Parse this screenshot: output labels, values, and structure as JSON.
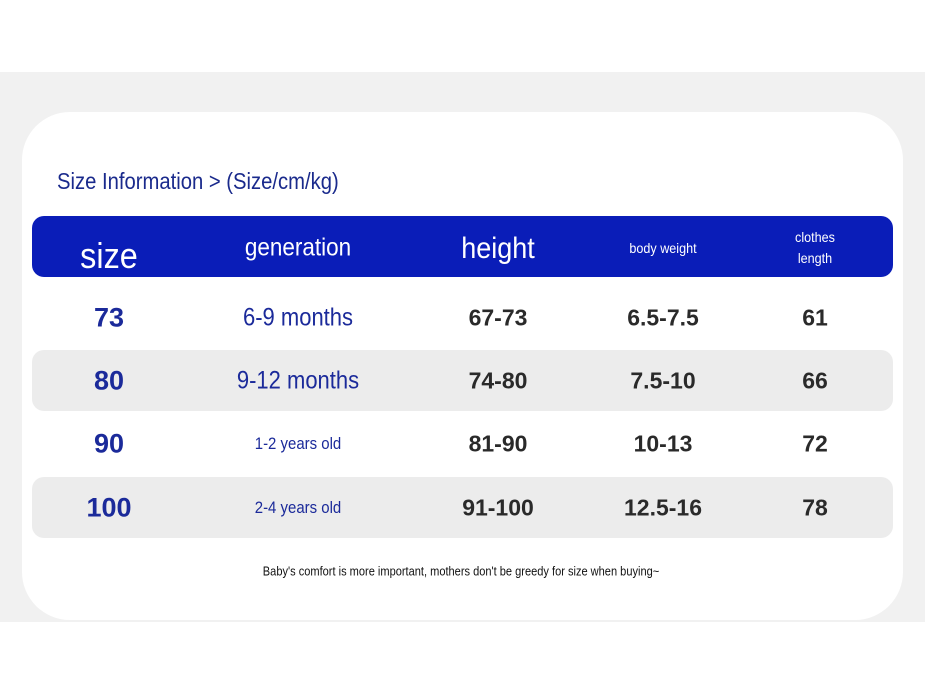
{
  "title": "Size Information > (Size/cm/kg)",
  "table": {
    "header": [
      "size",
      "generation",
      "height",
      "body weight",
      "clothes length"
    ],
    "rows": [
      [
        "73",
        "6-9 months",
        "67-73",
        "6.5-7.5",
        "61"
      ],
      [
        "80",
        "9-12 months",
        "74-80",
        "7.5-10",
        "66"
      ],
      [
        "90",
        "1-2 years old",
        "81-90",
        "10-13",
        "72"
      ],
      [
        "100",
        "2-4 years old",
        "91-100",
        "12.5-16",
        "78"
      ]
    ]
  },
  "note": "Baby's comfort is more important, mothers don't be greedy for size when buying~"
}
